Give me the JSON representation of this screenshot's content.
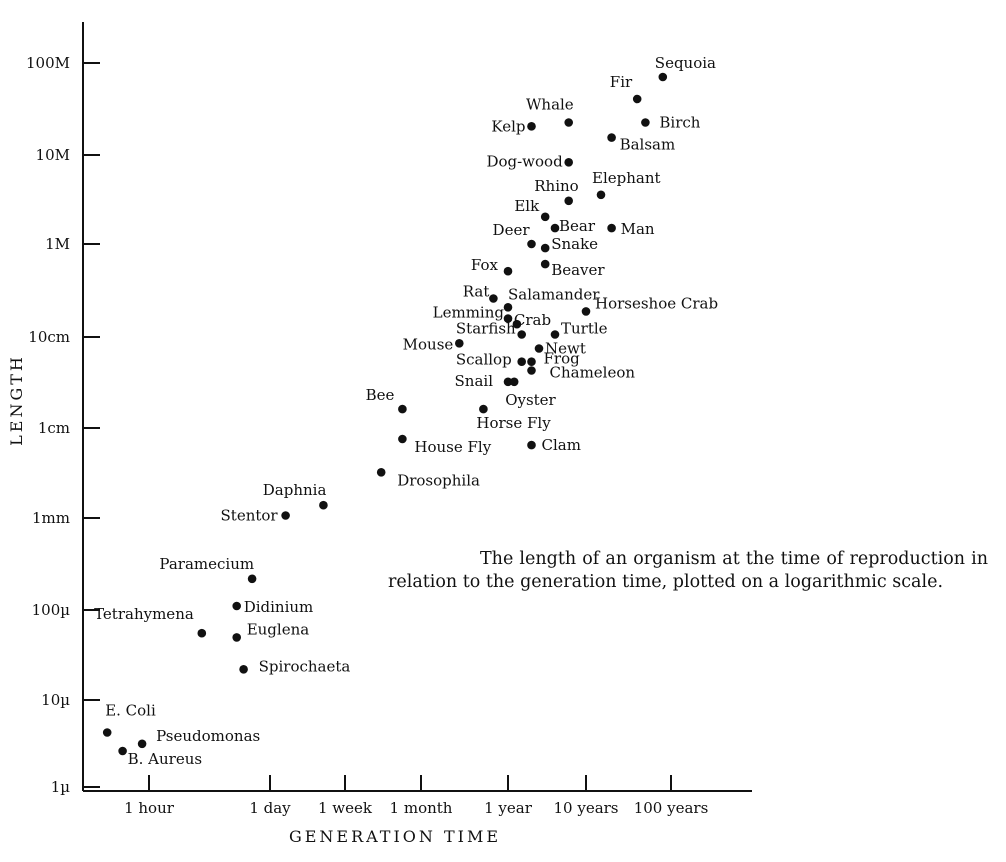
{
  "caption": "The length of an organism at the time of reproduction in relation to the generation time, plotted on a logarithmic scale.",
  "chart_data": {
    "type": "scatter",
    "xlabel": "GENERATION TIME",
    "ylabel": "LENGTH",
    "x_scale": "log",
    "y_scale": "log",
    "x_ticks": [
      "1 hour",
      "1 day",
      "1 week",
      "1 month",
      "1 year",
      "10 years",
      "100 years"
    ],
    "y_ticks": [
      "1µ",
      "10µ",
      "100µ",
      "1mm",
      "1cm",
      "10cm",
      "1M",
      "10M",
      "100M"
    ],
    "points": [
      {
        "label": "E. Coli",
        "x": "20 min",
        "y": "4µ"
      },
      {
        "label": "Pseudomonas",
        "x": "50 min",
        "y": "3µ"
      },
      {
        "label": "B. Aureus",
        "x": "30 min",
        "y": "2.5µ"
      },
      {
        "label": "Tetrahymena",
        "x": "4 hours",
        "y": "50µ"
      },
      {
        "label": "Paramecium",
        "x": "15 hours",
        "y": "200µ"
      },
      {
        "label": "Didinium",
        "x": "10 hours",
        "y": "100µ"
      },
      {
        "label": "Euglena",
        "x": "10 hours",
        "y": "45µ"
      },
      {
        "label": "Spirochaeta",
        "x": "12 hours",
        "y": "20µ"
      },
      {
        "label": "Stentor",
        "x": "1.5 days",
        "y": "1mm"
      },
      {
        "label": "Daphnia",
        "x": "4 days",
        "y": "1.3mm"
      },
      {
        "label": "Drosophila",
        "x": "2 weeks",
        "y": "3mm"
      },
      {
        "label": "Bee",
        "x": "3 weeks",
        "y": "1.5cm"
      },
      {
        "label": "House Fly",
        "x": "3 weeks",
        "y": "7mm"
      },
      {
        "label": "Horse Fly",
        "x": "6 months",
        "y": "1.5cm"
      },
      {
        "label": "Clam",
        "x": "2 years",
        "y": "6mm"
      },
      {
        "label": "Mouse",
        "x": "3 months",
        "y": "8cm"
      },
      {
        "label": "Rat",
        "x": "8 months",
        "y": "25cm"
      },
      {
        "label": "Salamander",
        "x": "1 year",
        "y": "20cm"
      },
      {
        "label": "Lemming",
        "x": "1 year",
        "y": "15cm"
      },
      {
        "label": "Crab",
        "x": "1.3 years",
        "y": "13cm"
      },
      {
        "label": "Starfish",
        "x": "1.5 years",
        "y": "10cm"
      },
      {
        "label": "Scallop",
        "x": "1.5 years",
        "y": "5cm"
      },
      {
        "label": "Snail",
        "x": "1 year",
        "y": "3cm"
      },
      {
        "label": "Oyster",
        "x": "1.2 years",
        "y": "3cm"
      },
      {
        "label": "Turtle",
        "x": "4 years",
        "y": "10cm"
      },
      {
        "label": "Newt",
        "x": "2.5 years",
        "y": "7cm"
      },
      {
        "label": "Frog",
        "x": "2 years",
        "y": "5cm"
      },
      {
        "label": "Chameleon",
        "x": "2 years",
        "y": "4cm"
      },
      {
        "label": "Horseshoe Crab",
        "x": "10 years",
        "y": "18cm"
      },
      {
        "label": "Fox",
        "x": "1 year",
        "y": "50cm"
      },
      {
        "label": "Beaver",
        "x": "3 years",
        "y": "60cm"
      },
      {
        "label": "Deer",
        "x": "2 years",
        "y": "1M"
      },
      {
        "label": "Snake",
        "x": "3 years",
        "y": "90cm"
      },
      {
        "label": "Elk",
        "x": "3 years",
        "y": "2M"
      },
      {
        "label": "Bear",
        "x": "4 years",
        "y": "1.5M"
      },
      {
        "label": "Rhino",
        "x": "6 years",
        "y": "3M"
      },
      {
        "label": "Man",
        "x": "20 years",
        "y": "1.5M"
      },
      {
        "label": "Elephant",
        "x": "15 years",
        "y": "3.5M"
      },
      {
        "label": "Dog-wood",
        "x": "6 years",
        "y": "8M"
      },
      {
        "label": "Kelp",
        "x": "2 years",
        "y": "20M"
      },
      {
        "label": "Whale",
        "x": "6 years",
        "y": "22M"
      },
      {
        "label": "Balsam",
        "x": "20 years",
        "y": "15M"
      },
      {
        "label": "Birch",
        "x": "50 years",
        "y": "22M"
      },
      {
        "label": "Fir",
        "x": "40 years",
        "y": "40M"
      },
      {
        "label": "Sequoia",
        "x": "80 years",
        "y": "70M"
      }
    ]
  }
}
